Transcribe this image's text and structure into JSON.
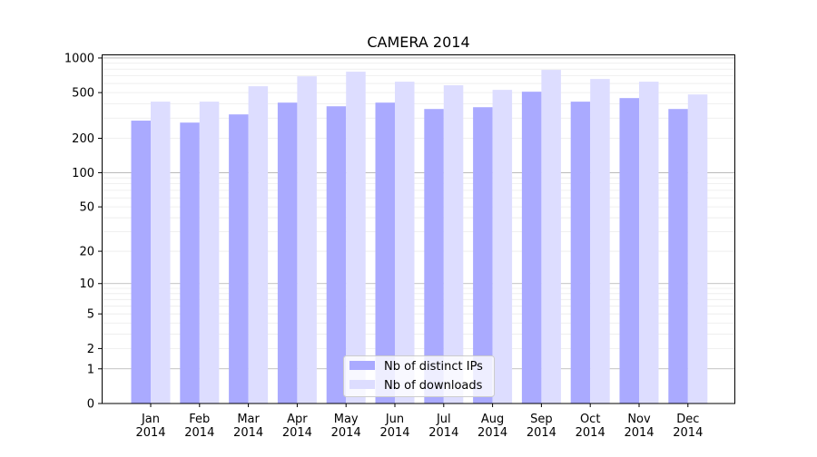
{
  "chart_data": {
    "type": "bar",
    "title": "CAMERA 2014",
    "xlabel": "",
    "ylabel": "",
    "yscale": "log(1+x)",
    "ylim": [
      0,
      1100
    ],
    "grid": true,
    "legend_position": "lower center",
    "categories": [
      "Jan\n2014",
      "Feb\n2014",
      "Mar\n2014",
      "Apr\n2014",
      "May\n2014",
      "Jun\n2014",
      "Jul\n2014",
      "Aug\n2014",
      "Sep\n2014",
      "Oct\n2014",
      "Nov\n2014",
      "Dec\n2014"
    ],
    "ytick_labels": [
      "0",
      "1",
      "2",
      "5",
      "10",
      "20",
      "50",
      "100",
      "200",
      "500",
      "1000"
    ],
    "ytick_values": [
      0,
      1,
      2,
      5,
      10,
      20,
      50,
      100,
      200,
      500,
      1000
    ],
    "series": [
      {
        "name": "Nb of distinct IPs",
        "color": "#aaaaff",
        "values": [
          285,
          274,
          323,
          409,
          380,
          409,
          360,
          373,
          509,
          417,
          448,
          360
        ]
      },
      {
        "name": "Nb of downloads",
        "color": "#ddddff",
        "values": [
          417,
          417,
          568,
          693,
          760,
          622,
          579,
          528,
          788,
          657,
          622,
          482
        ]
      }
    ]
  }
}
